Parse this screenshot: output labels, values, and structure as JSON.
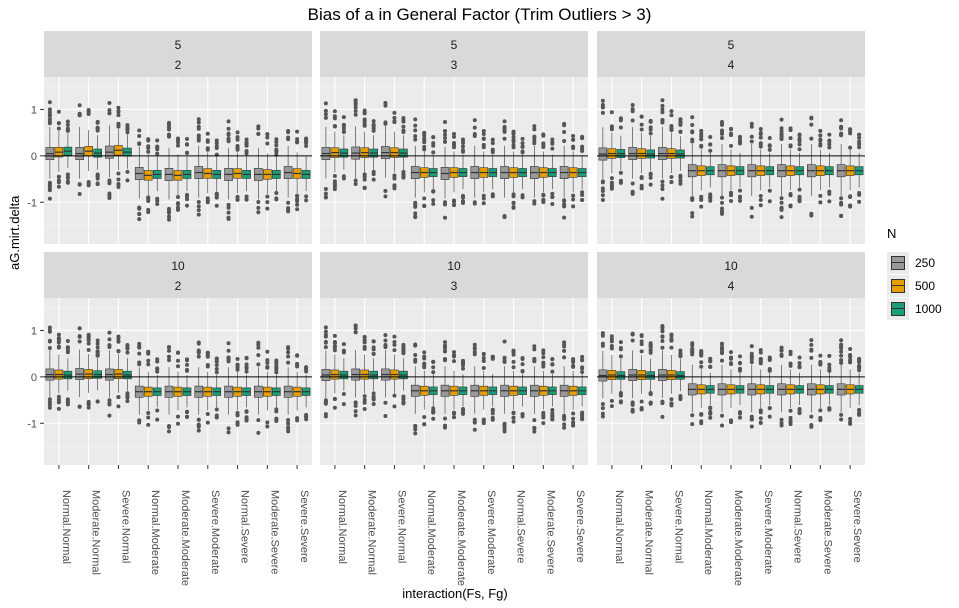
{
  "title": "Bias of a in General Factor (Trim Outliers > 3)",
  "xlabel": "interaction(Fs, Fg)",
  "ylabel": "aG.mirt.delta",
  "legend": {
    "title": "N",
    "items": [
      {
        "label": "250",
        "color": "#999999"
      },
      {
        "label": "500",
        "color": "#E69F00"
      },
      {
        "label": "1000",
        "color": "#1B9E77"
      }
    ]
  },
  "chart_data": {
    "type": "boxplot",
    "title": "Bias of a in General Factor (Trim Outliers > 3)",
    "xlabel": "interaction(Fs, Fg)",
    "ylabel": "aG.mirt.delta",
    "ylim": [
      -1.9,
      1.7
    ],
    "yticks": [
      -1,
      0,
      1
    ],
    "hline": 0,
    "grid": true,
    "legend_position": "right",
    "facet_rows": [
      "5",
      "10"
    ],
    "facet_cols": [
      "2",
      "3",
      "4"
    ],
    "categories": [
      "Normal.Normal",
      "Moderate.Normal",
      "Severe.Normal",
      "Normal.Moderate",
      "Moderate.Moderate",
      "Severe.Moderate",
      "Normal.Severe",
      "Moderate.Severe",
      "Severe.Severe"
    ],
    "series_names": [
      "250",
      "500",
      "1000"
    ],
    "panels": [
      {
        "row": "5",
        "col": "2",
        "medians": [
          [
            0.05,
            0.08,
            0.1
          ],
          [
            0.05,
            0.1,
            0.06
          ],
          [
            0.08,
            0.12,
            0.08
          ],
          [
            -0.38,
            -0.42,
            -0.4
          ],
          [
            -0.4,
            -0.42,
            -0.4
          ],
          [
            -0.36,
            -0.38,
            -0.4
          ],
          [
            -0.4,
            -0.38,
            -0.4
          ],
          [
            -0.4,
            -0.4,
            -0.4
          ],
          [
            -0.36,
            -0.38,
            -0.4
          ]
        ],
        "spread": [
          1.2,
          0.95,
          0.8
        ]
      },
      {
        "row": "5",
        "col": "3",
        "medians": [
          [
            0.05,
            0.07,
            0.06
          ],
          [
            0.06,
            0.07,
            0.06
          ],
          [
            0.07,
            0.07,
            0.06
          ],
          [
            -0.36,
            -0.36,
            -0.36
          ],
          [
            -0.38,
            -0.36,
            -0.36
          ],
          [
            -0.36,
            -0.36,
            -0.36
          ],
          [
            -0.36,
            -0.36,
            -0.36
          ],
          [
            -0.36,
            -0.36,
            -0.36
          ],
          [
            -0.36,
            -0.36,
            -0.36
          ]
        ],
        "spread": [
          1.2,
          0.95,
          0.8
        ]
      },
      {
        "row": "5",
        "col": "4",
        "medians": [
          [
            0.04,
            0.05,
            0.05
          ],
          [
            0.05,
            0.05,
            0.04
          ],
          [
            0.05,
            0.05,
            0.04
          ],
          [
            -0.32,
            -0.32,
            -0.32
          ],
          [
            -0.32,
            -0.32,
            -0.32
          ],
          [
            -0.32,
            -0.32,
            -0.32
          ],
          [
            -0.32,
            -0.32,
            -0.32
          ],
          [
            -0.32,
            -0.32,
            -0.32
          ],
          [
            -0.32,
            -0.32,
            -0.32
          ]
        ],
        "spread": [
          1.2,
          0.95,
          0.8
        ]
      },
      {
        "row": "10",
        "col": "2",
        "medians": [
          [
            0.05,
            0.05,
            0.04
          ],
          [
            0.06,
            0.06,
            0.05
          ],
          [
            0.05,
            0.06,
            0.04
          ],
          [
            -0.32,
            -0.32,
            -0.32
          ],
          [
            -0.32,
            -0.32,
            -0.32
          ],
          [
            -0.32,
            -0.32,
            -0.32
          ],
          [
            -0.32,
            -0.32,
            -0.32
          ],
          [
            -0.32,
            -0.32,
            -0.32
          ],
          [
            -0.32,
            -0.32,
            -0.32
          ]
        ],
        "spread": [
          1.1,
          0.9,
          0.75
        ]
      },
      {
        "row": "10",
        "col": "3",
        "medians": [
          [
            0.04,
            0.05,
            0.04
          ],
          [
            0.05,
            0.05,
            0.04
          ],
          [
            0.05,
            0.05,
            0.04
          ],
          [
            -0.3,
            -0.3,
            -0.3
          ],
          [
            -0.3,
            -0.3,
            -0.3
          ],
          [
            -0.3,
            -0.3,
            -0.3
          ],
          [
            -0.3,
            -0.3,
            -0.3
          ],
          [
            -0.3,
            -0.3,
            -0.3
          ],
          [
            -0.3,
            -0.3,
            -0.3
          ]
        ],
        "spread": [
          1.1,
          0.9,
          0.75
        ]
      },
      {
        "row": "10",
        "col": "4",
        "medians": [
          [
            0.03,
            0.04,
            0.03
          ],
          [
            0.04,
            0.04,
            0.03
          ],
          [
            0.04,
            0.04,
            0.03
          ],
          [
            -0.27,
            -0.27,
            -0.27
          ],
          [
            -0.27,
            -0.27,
            -0.27
          ],
          [
            -0.27,
            -0.27,
            -0.27
          ],
          [
            -0.27,
            -0.27,
            -0.27
          ],
          [
            -0.27,
            -0.27,
            -0.27
          ],
          [
            -0.27,
            -0.27,
            -0.27
          ]
        ],
        "spread": [
          1.1,
          0.9,
          0.75
        ]
      }
    ]
  }
}
